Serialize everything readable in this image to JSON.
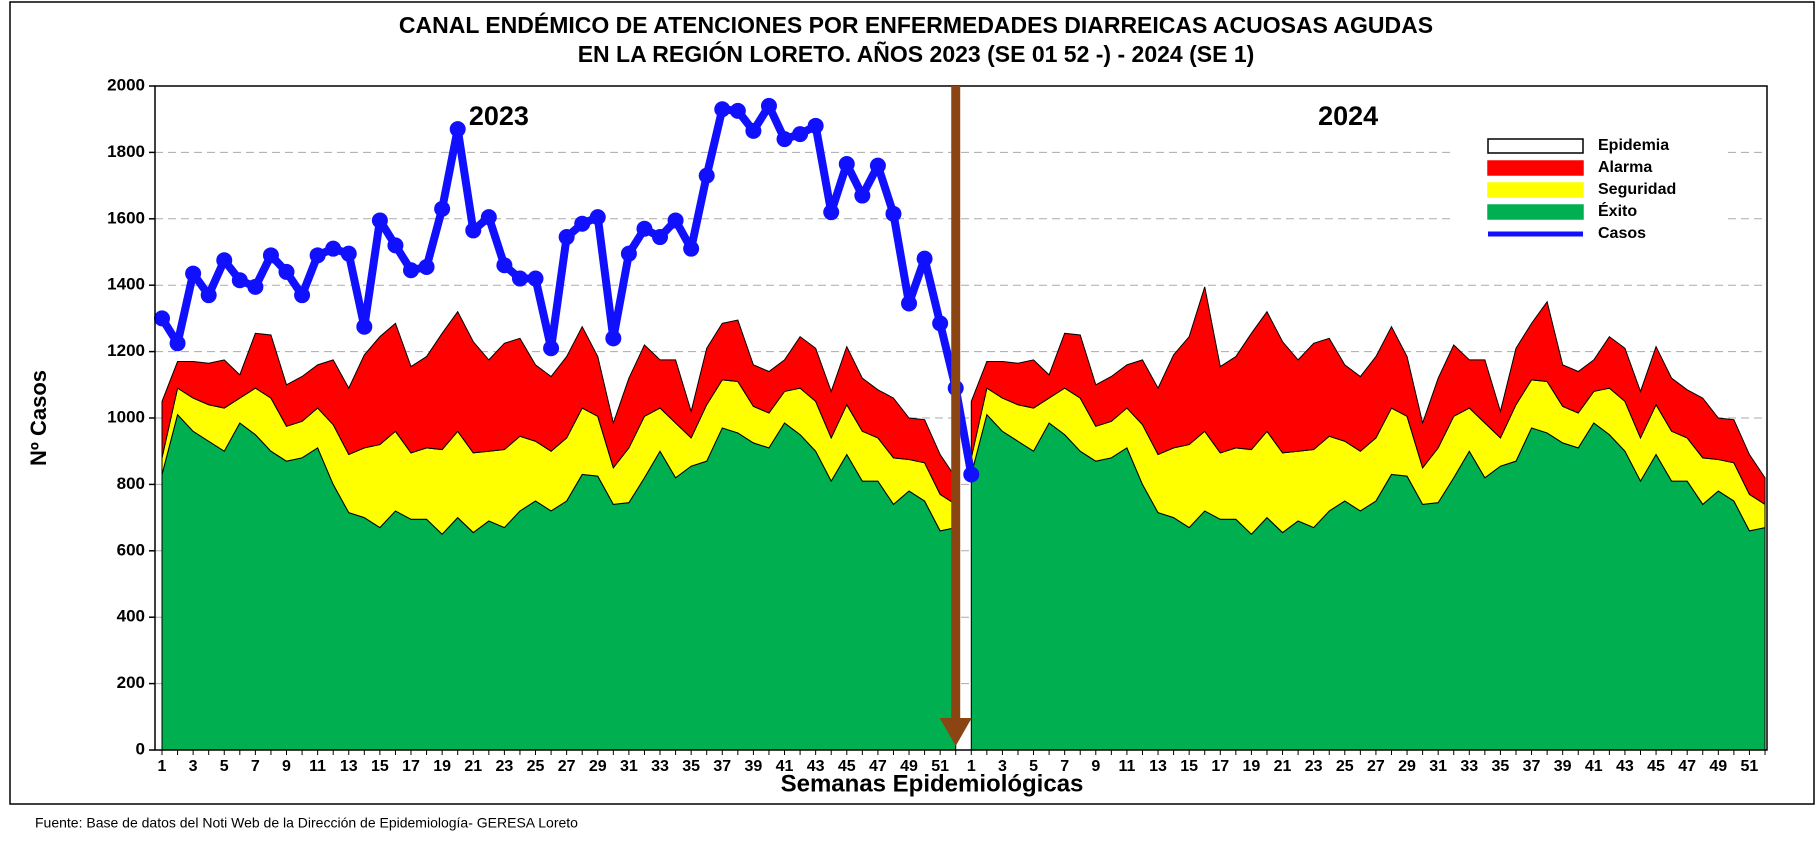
{
  "chart_data": {
    "type": "stacked_area",
    "title": [
      "CANAL ENDÉMICO DE ATENCIONES POR ENFERMEDADES DIARREICAS ACUOSAS AGUDAS",
      "EN LA REGIÓN LORETO.  AÑOS 2023 (SE 01 52 -) - 2024 (SE 1)"
    ],
    "x_label": "Semanas Epidemiológicas",
    "y_label": "Nº Casos",
    "annotations": [
      "2023",
      "2024"
    ],
    "source": "Fuente: Base de datos del Noti Web de la Dirección de Epidemiología- GERESA Loreto",
    "categories": [
      1,
      null,
      3,
      null,
      5,
      null,
      7,
      null,
      9,
      null,
      11,
      null,
      13,
      null,
      15,
      null,
      17,
      null,
      19,
      null,
      21,
      null,
      23,
      null,
      25,
      null,
      27,
      null,
      29,
      null,
      31,
      null,
      33,
      null,
      35,
      null,
      37,
      null,
      39,
      null,
      41,
      null,
      43,
      null,
      45,
      null,
      47,
      null,
      49,
      null,
      51,
      null,
      1,
      null,
      3,
      null,
      5,
      null,
      7,
      null,
      9,
      null,
      11,
      null,
      13,
      null,
      15,
      null,
      17,
      null,
      19,
      null,
      21,
      null,
      23,
      null,
      25,
      null,
      27,
      null,
      29,
      null,
      31,
      null,
      33,
      null,
      35,
      null,
      37,
      null,
      39,
      null,
      41,
      null,
      43,
      null,
      45,
      null,
      47,
      null,
      49,
      null,
      51,
      null
    ],
    "series": [
      {
        "name": "Epidemia",
        "color": "#ffffff"
      },
      {
        "name": "Alarma",
        "color": "#ff0000",
        "values": [
          170,
          80,
          110,
          125,
          145,
          70,
          165,
          190,
          125,
          135,
          130,
          195,
          200,
          280,
          325,
          325,
          260,
          275,
          350,
          360,
          335,
          275,
          320,
          295,
          230,
          225,
          245,
          245,
          180,
          135,
          210,
          215,
          145,
          190,
          80,
          170,
          170,
          185,
          125,
          125,
          95,
          155,
          160,
          140,
          175,
          160,
          145,
          180,
          125,
          130,
          120,
          80,
          170,
          80,
          110,
          125,
          145,
          70,
          165,
          190,
          125,
          135,
          130,
          195,
          200,
          280,
          325,
          435,
          260,
          275,
          350,
          360,
          335,
          275,
          320,
          295,
          230,
          225,
          245,
          245,
          180,
          135,
          210,
          215,
          145,
          190,
          80,
          170,
          170,
          240,
          125,
          125,
          95,
          155,
          160,
          140,
          175,
          160,
          145,
          180,
          125,
          130,
          120,
          80
        ]
      },
      {
        "name": "Seguridad",
        "color": "#ffff00",
        "values": [
          50,
          80,
          100,
          110,
          130,
          75,
          140,
          160,
          105,
          110,
          120,
          180,
          175,
          210,
          250,
          240,
          200,
          215,
          255,
          260,
          240,
          210,
          235,
          225,
          180,
          180,
          190,
          200,
          180,
          110,
          165,
          185,
          130,
          165,
          85,
          170,
          145,
          155,
          110,
          105,
          95,
          140,
          150,
          130,
          150,
          150,
          130,
          140,
          95,
          115,
          110,
          70,
          50,
          80,
          100,
          110,
          130,
          75,
          140,
          160,
          105,
          110,
          120,
          180,
          175,
          210,
          250,
          240,
          200,
          215,
          255,
          260,
          240,
          210,
          235,
          225,
          180,
          180,
          190,
          200,
          180,
          110,
          165,
          185,
          130,
          165,
          85,
          170,
          145,
          155,
          110,
          105,
          95,
          140,
          150,
          130,
          150,
          150,
          130,
          140,
          95,
          115,
          110,
          70
        ]
      },
      {
        "name": "Éxito",
        "color": "#00b050",
        "values": [
          830,
          1010,
          960,
          930,
          900,
          985,
          950,
          900,
          870,
          880,
          910,
          800,
          715,
          700,
          670,
          720,
          695,
          695,
          650,
          700,
          655,
          690,
          670,
          720,
          750,
          720,
          750,
          830,
          825,
          740,
          745,
          820,
          900,
          820,
          855,
          870,
          970,
          955,
          925,
          910,
          985,
          950,
          900,
          810,
          890,
          810,
          810,
          740,
          780,
          750,
          660,
          670,
          830,
          1010,
          960,
          930,
          900,
          985,
          950,
          900,
          870,
          880,
          910,
          800,
          715,
          700,
          670,
          720,
          695,
          695,
          650,
          700,
          655,
          690,
          670,
          720,
          750,
          720,
          750,
          830,
          825,
          740,
          745,
          820,
          900,
          820,
          855,
          870,
          970,
          955,
          925,
          910,
          985,
          950,
          900,
          810,
          890,
          810,
          810,
          740,
          780,
          750,
          660,
          670
        ]
      },
      {
        "name": "Casos",
        "color": "#1010ff",
        "type": "line",
        "values": [
          1300,
          1225,
          1435,
          1370,
          1475,
          1415,
          1395,
          1490,
          1440,
          1370,
          1490,
          1510,
          1495,
          1275,
          1595,
          1520,
          1445,
          1455,
          1630,
          1870,
          1565,
          1605,
          1460,
          1420,
          1420,
          1210,
          1545,
          1585,
          1605,
          1240,
          1495,
          1570,
          1545,
          1595,
          1510,
          1730,
          1930,
          1925,
          1865,
          1940,
          1840,
          1855,
          1880,
          1620,
          1765,
          1670,
          1760,
          1615,
          1345,
          1480,
          1285,
          1090,
          830,
          null,
          null,
          null,
          null,
          null,
          null,
          null,
          null,
          null,
          null,
          null,
          null,
          null,
          null,
          null,
          null,
          null,
          null,
          null,
          null,
          null,
          null,
          null,
          null,
          null,
          null,
          null,
          null,
          null,
          null,
          null,
          null,
          null,
          null,
          null,
          null,
          null,
          null,
          null,
          null,
          null,
          null,
          null,
          null,
          null,
          null,
          null,
          null,
          null,
          null,
          null
        ]
      }
    ],
    "ylim": [
      0,
      2000
    ],
    "yticks": [
      0,
      200,
      400,
      600,
      800,
      1000,
      1200,
      1400,
      1600,
      1800,
      2000
    ],
    "grid": true,
    "legend": "upper right"
  }
}
